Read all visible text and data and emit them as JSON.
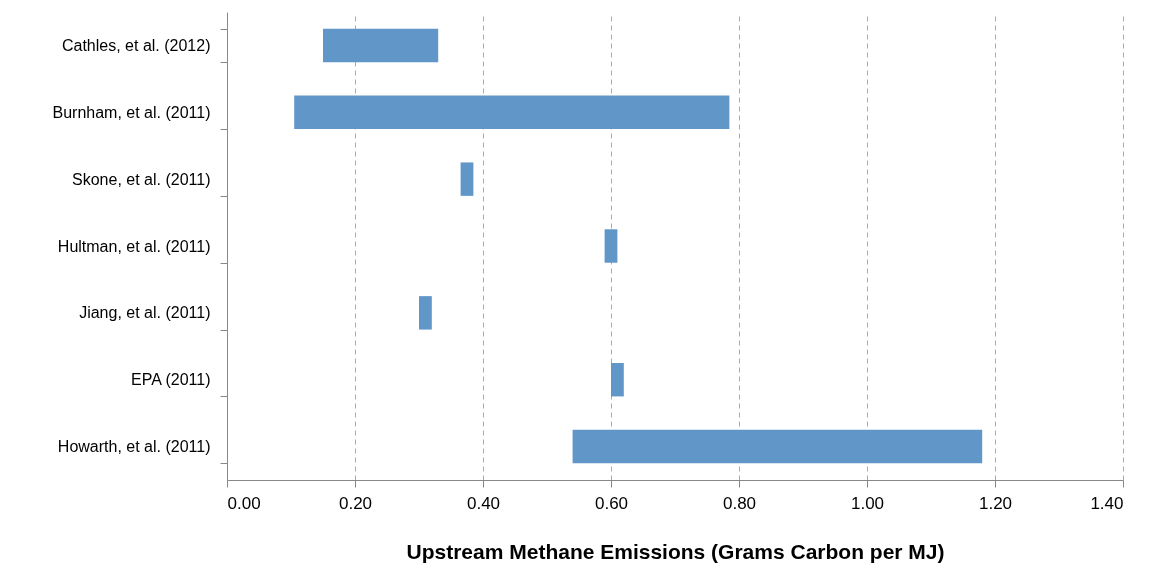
{
  "chart_data": {
    "type": "bar",
    "orientation": "horizontal",
    "xlabel": "Upstream Methane Emissions (Grams Carbon per MJ)",
    "categories": [
      "Cathles, et al. (2012)",
      "Burnham, et al. (2011)",
      "Skone, et al. (2011)",
      "Hultman, et al. (2011)",
      "Jiang, et al. (2011)",
      "EPA (2011)",
      "Howarth, et al. (2011)"
    ],
    "base": [
      0.15,
      0.105,
      0.365,
      0.59,
      0.3,
      0.6,
      0.54
    ],
    "values": [
      0.18,
      0.68,
      0.02,
      0.02,
      0.02,
      0.02,
      0.64
    ],
    "color": "#6096c8",
    "xlim": [
      0,
      1.4
    ],
    "xticks": [
      {
        "value": 0,
        "label": "0.00"
      },
      {
        "value": 0.2,
        "label": "0.20"
      },
      {
        "value": 0.4,
        "label": "0.40"
      },
      {
        "value": 0.6,
        "label": "0.60"
      },
      {
        "value": 0.8,
        "label": "0.80"
      },
      {
        "value": 1.0,
        "label": "1.00"
      },
      {
        "value": 1.2,
        "label": "1.20"
      },
      {
        "value": 1.4,
        "label": "1.40"
      }
    ],
    "grid": "x"
  }
}
